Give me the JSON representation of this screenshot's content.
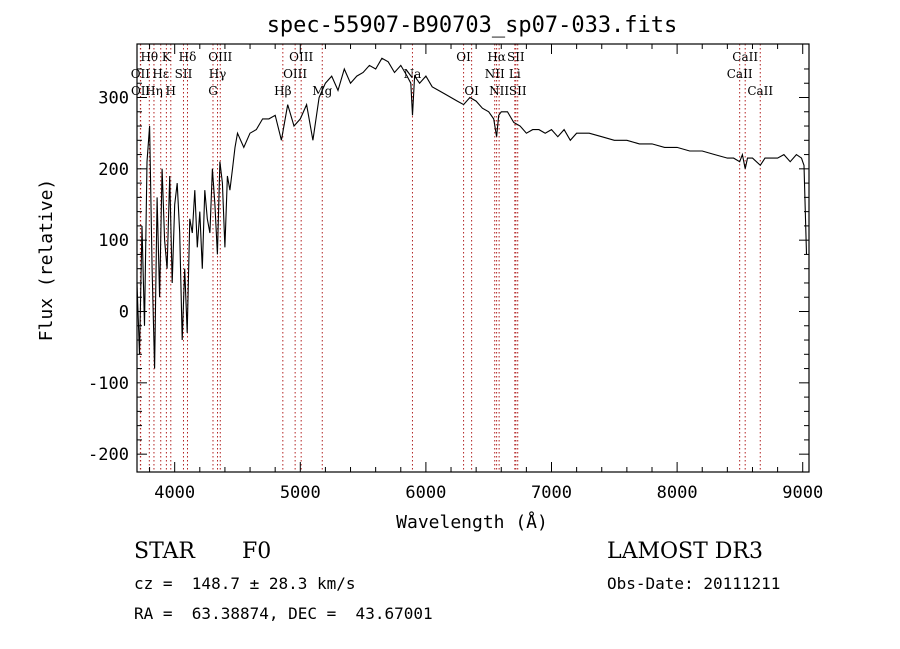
{
  "chart_data": {
    "type": "line",
    "title": "spec-55907-B90703_sp07-033.fits",
    "xlabel": "Wavelength (Å)",
    "ylabel": "Flux (relative)",
    "xlim": [
      3700,
      9050
    ],
    "ylim": [
      -225,
      375
    ],
    "xticks": [
      4000,
      5000,
      6000,
      7000,
      8000,
      9000
    ],
    "yticks": [
      -200,
      -100,
      0,
      100,
      200,
      300
    ],
    "grid": false,
    "spectral_lines": [
      {
        "name": "Hθ",
        "wavelength": 3798,
        "row": 1
      },
      {
        "name": "OII",
        "wavelength": 3727,
        "row": 2
      },
      {
        "name": "OII",
        "wavelength": 3729,
        "row": 3
      },
      {
        "name": "Hη",
        "wavelength": 3835,
        "row": 3
      },
      {
        "name": "Hε",
        "wavelength": 3889,
        "row": 2
      },
      {
        "name": "K",
        "wavelength": 3934,
        "row": 1
      },
      {
        "name": "SII",
        "wavelength": 4070,
        "row": 2
      },
      {
        "name": "H",
        "wavelength": 3969,
        "row": 3
      },
      {
        "name": "Hδ",
        "wavelength": 4102,
        "row": 1
      },
      {
        "name": "OIII",
        "wavelength": 4363,
        "row": 1
      },
      {
        "name": "Hγ",
        "wavelength": 4341,
        "row": 2
      },
      {
        "name": "G",
        "wavelength": 4305,
        "row": 3
      },
      {
        "name": "OIII",
        "wavelength": 5007,
        "row": 1
      },
      {
        "name": "OIII",
        "wavelength": 4959,
        "row": 2
      },
      {
        "name": "Hβ",
        "wavelength": 4861,
        "row": 3
      },
      {
        "name": "Mg",
        "wavelength": 5175,
        "row": 3
      },
      {
        "name": "Na",
        "wavelength": 5893,
        "row": 2
      },
      {
        "name": "OI",
        "wavelength": 6300,
        "row": 1
      },
      {
        "name": "OI",
        "wavelength": 6364,
        "row": 3
      },
      {
        "name": "Hα",
        "wavelength": 6563,
        "row": 1
      },
      {
        "name": "NII",
        "wavelength": 6548,
        "row": 2
      },
      {
        "name": "NII",
        "wavelength": 6583,
        "row": 3
      },
      {
        "name": "SII",
        "wavelength": 6716,
        "row": 1
      },
      {
        "name": "Li",
        "wavelength": 6708,
        "row": 2
      },
      {
        "name": "SII",
        "wavelength": 6731,
        "row": 3
      },
      {
        "name": "CaII",
        "wavelength": 8542,
        "row": 1
      },
      {
        "name": "CaII",
        "wavelength": 8498,
        "row": 2
      },
      {
        "name": "CaII",
        "wavelength": 8662,
        "row": 3
      }
    ],
    "series": [
      {
        "name": "spectrum",
        "x": [
          3700,
          3720,
          3740,
          3760,
          3780,
          3800,
          3820,
          3840,
          3860,
          3880,
          3900,
          3920,
          3940,
          3960,
          3980,
          4000,
          4020,
          4040,
          4060,
          4080,
          4100,
          4120,
          4140,
          4160,
          4180,
          4200,
          4220,
          4240,
          4260,
          4280,
          4300,
          4320,
          4340,
          4360,
          4380,
          4400,
          4420,
          4440,
          4460,
          4480,
          4500,
          4550,
          4600,
          4650,
          4700,
          4750,
          4800,
          4850,
          4900,
          4950,
          5000,
          5050,
          5100,
          5150,
          5200,
          5250,
          5300,
          5350,
          5400,
          5450,
          5500,
          5550,
          5600,
          5650,
          5700,
          5750,
          5800,
          5850,
          5880,
          5893,
          5910,
          5950,
          6000,
          6050,
          6100,
          6150,
          6200,
          6250,
          6300,
          6350,
          6400,
          6450,
          6500,
          6540,
          6563,
          6580,
          6600,
          6650,
          6700,
          6750,
          6800,
          6850,
          6900,
          6950,
          7000,
          7050,
          7100,
          7150,
          7200,
          7300,
          7400,
          7500,
          7600,
          7700,
          7800,
          7900,
          8000,
          8100,
          8200,
          8300,
          8400,
          8450,
          8498,
          8520,
          8542,
          8560,
          8600,
          8662,
          8700,
          8750,
          8800,
          8850,
          8900,
          8950,
          8990,
          9000,
          9010,
          9030
        ],
        "y": [
          40,
          -60,
          120,
          -20,
          210,
          260,
          60,
          -80,
          160,
          20,
          200,
          100,
          60,
          190,
          40,
          150,
          180,
          110,
          -40,
          60,
          -30,
          130,
          110,
          170,
          90,
          140,
          60,
          170,
          130,
          110,
          200,
          150,
          80,
          210,
          180,
          90,
          190,
          170,
          200,
          230,
          250,
          230,
          250,
          255,
          270,
          270,
          275,
          240,
          290,
          260,
          270,
          290,
          240,
          300,
          320,
          330,
          310,
          340,
          320,
          330,
          335,
          345,
          340,
          355,
          350,
          335,
          345,
          330,
          320,
          275,
          330,
          320,
          330,
          315,
          310,
          305,
          300,
          295,
          290,
          300,
          295,
          285,
          280,
          270,
          245,
          275,
          280,
          280,
          265,
          260,
          250,
          255,
          255,
          250,
          255,
          245,
          255,
          240,
          250,
          250,
          245,
          240,
          240,
          235,
          235,
          230,
          230,
          225,
          225,
          220,
          215,
          215,
          210,
          220,
          200,
          215,
          215,
          205,
          215,
          215,
          215,
          220,
          210,
          220,
          215,
          210,
          205,
          80
        ]
      }
    ]
  },
  "info": {
    "object_class": "STAR",
    "subclass": "F0",
    "survey": "LAMOST DR3",
    "redshift": "cz =  148.7 ± 28.3 km/s",
    "obs_date": "Obs-Date: 20111211",
    "coords": "RA =  63.38874, DEC =  43.67001"
  },
  "colors": {
    "line_marker": "#b22222",
    "spectrum": "#000000",
    "axis": "#000000"
  }
}
